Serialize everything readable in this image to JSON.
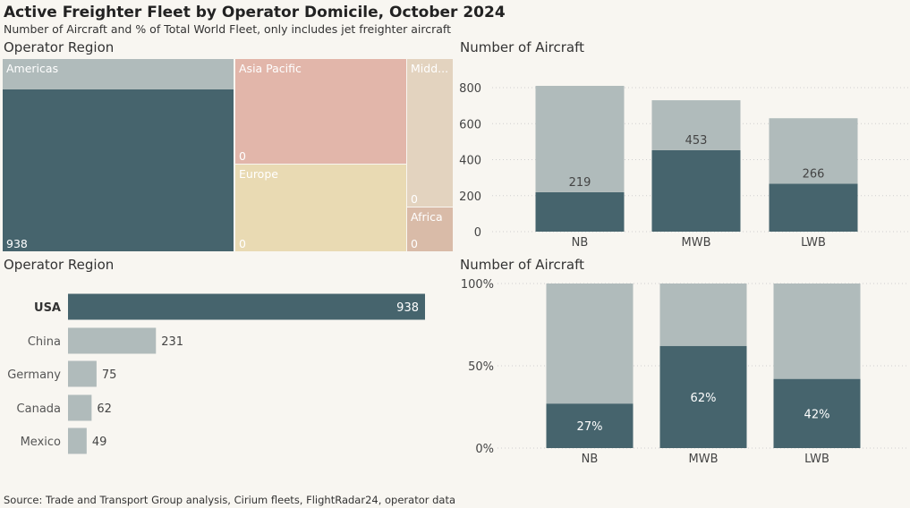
{
  "header": {
    "title": "Active Freighter Fleet by Operator Domicile, October 2024",
    "subtitle": "Number of Aircraft and % of Total World Fleet, only includes jet freighter aircraft"
  },
  "footer": {
    "source": "Source: Trade and Transport Group analysis, Cirium fleets, FlightRadar24, operator data"
  },
  "colors": {
    "dark": "#46646d",
    "light": "#b0bbbb",
    "background": "#f8f6f1"
  },
  "chart_data": [
    {
      "type": "treemap",
      "title": "Operator Region",
      "tiles": [
        {
          "label": "Americas",
          "value_label": "938",
          "color": "#46646d",
          "header_color": "#b0bbbb"
        },
        {
          "label": "Asia Pacific",
          "value_label": "0",
          "color": "#e2b6aa"
        },
        {
          "label": "Europe",
          "value_label": "0",
          "color": "#e9dab3"
        },
        {
          "label": "Midd...",
          "value_label": "0",
          "color": "#e3d3bf"
        },
        {
          "label": "Africa",
          "value_label": "0",
          "color": "#d9bba8"
        }
      ]
    },
    {
      "type": "bar",
      "stacked": true,
      "title": "Number of Aircraft",
      "categories": [
        "NB",
        "MWB",
        "LWB"
      ],
      "series": [
        {
          "values": [
            219,
            453,
            266
          ],
          "color": "#46646d"
        },
        {
          "values": [
            591,
            277,
            364
          ],
          "color": "#b0bbbb"
        }
      ],
      "data_labels": [
        "219",
        "453",
        "266"
      ],
      "ylim": [
        0,
        800
      ],
      "yticks": [
        0,
        200,
        400,
        600,
        800
      ],
      "grid": true
    },
    {
      "type": "bar",
      "orientation": "horizontal",
      "title": "Operator Region",
      "categories": [
        "USA",
        "China",
        "Germany",
        "Canada",
        "Mexico"
      ],
      "values": [
        938,
        231,
        75,
        62,
        49
      ],
      "highlight": "USA"
    },
    {
      "type": "bar",
      "stacked": true,
      "normalized": true,
      "title": "Number of Aircraft",
      "categories": [
        "NB",
        "MWB",
        "LWB"
      ],
      "values": [
        27,
        62,
        42
      ],
      "data_labels": [
        "27%",
        "62%",
        "42%"
      ],
      "yticks": [
        "0%",
        "50%",
        "100%"
      ],
      "ylim": [
        0,
        100
      ],
      "grid": true
    }
  ]
}
